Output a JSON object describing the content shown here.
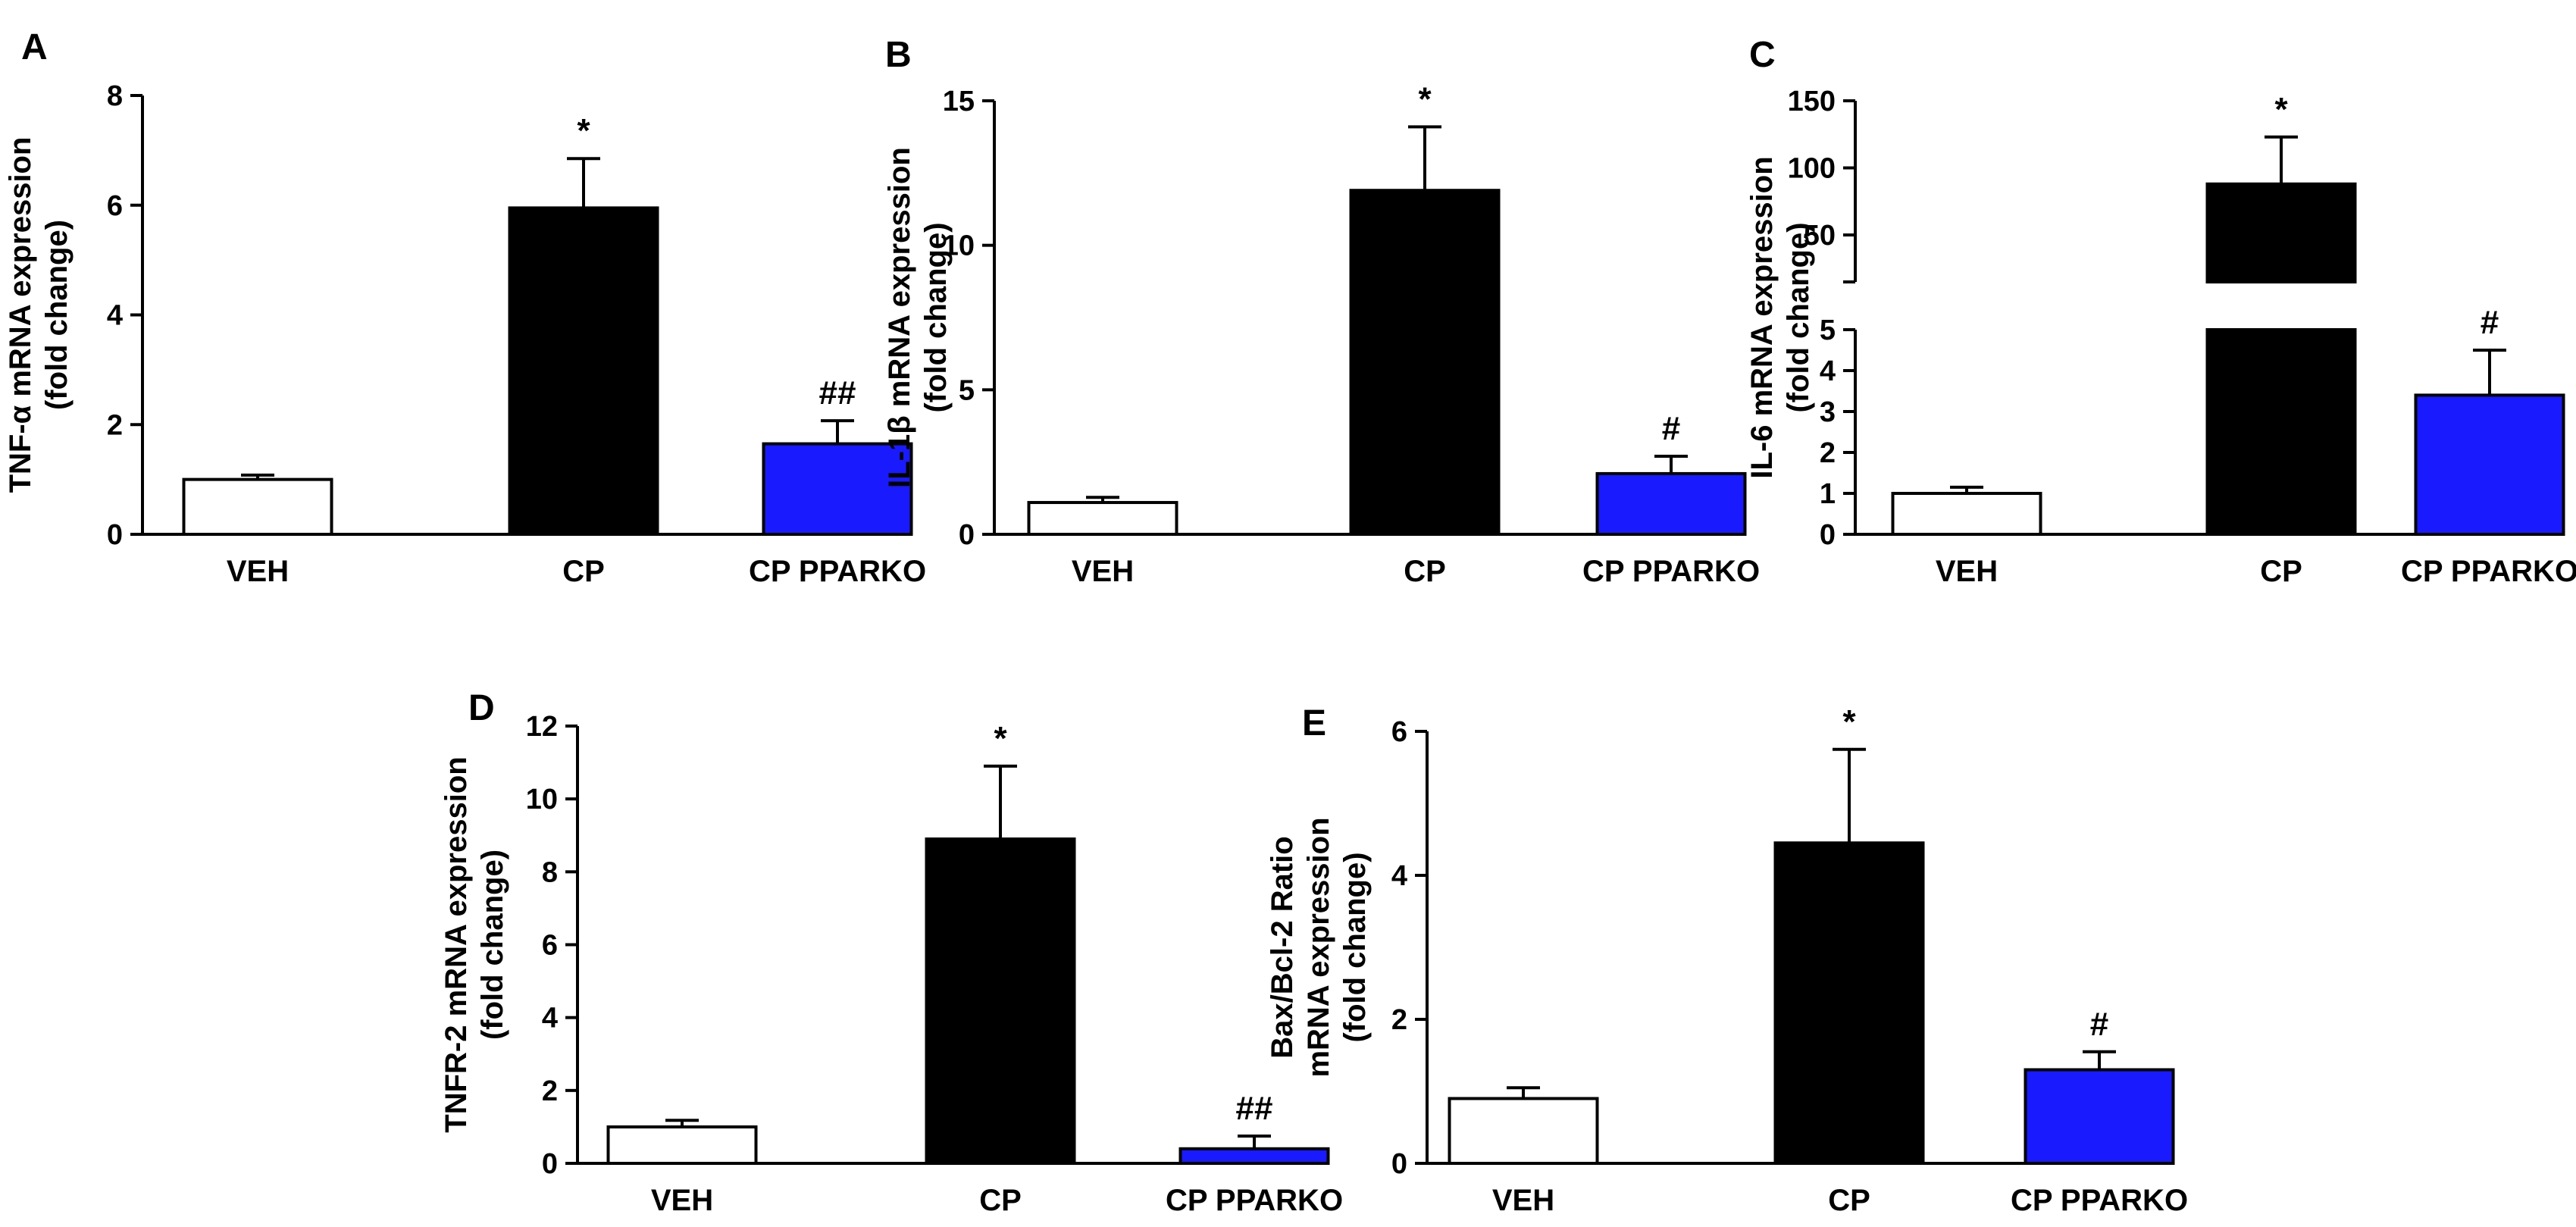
{
  "colors": {
    "VEH": "#ffffff",
    "CP": "#000000",
    "CP PPARKO": "#1a1aff"
  },
  "chart_data": [
    {
      "panel": "A",
      "type": "bar",
      "categories": [
        "VEH",
        "CP",
        "CP PPARKO"
      ],
      "values": [
        1.0,
        5.95,
        1.65
      ],
      "errors": [
        0.08,
        0.9,
        0.42
      ],
      "annotations": [
        "",
        "*",
        "##"
      ],
      "ylabel": [
        "TNF-α mRNA expression",
        "(fold change)"
      ],
      "ylim": [
        0,
        8
      ],
      "yticks": [
        0,
        2,
        4,
        6,
        8
      ]
    },
    {
      "panel": "B",
      "type": "bar",
      "categories": [
        "VEH",
        "CP",
        "CP PPARKO"
      ],
      "values": [
        1.1,
        11.9,
        2.1
      ],
      "errors": [
        0.18,
        2.2,
        0.6
      ],
      "annotations": [
        "",
        "*",
        "#"
      ],
      "ylabel": [
        "IL-1β mRNA expression",
        "(fold change)"
      ],
      "ylim": [
        0,
        15
      ],
      "yticks": [
        0,
        5,
        10,
        15
      ]
    },
    {
      "panel": "C",
      "type": "bar",
      "broken_axis": true,
      "categories": [
        "VEH",
        "CP",
        "CP PPARKO"
      ],
      "values": [
        1.0,
        88,
        3.4
      ],
      "errors": [
        0.15,
        35,
        1.1
      ],
      "annotations": [
        "",
        "*",
        "#"
      ],
      "ylabel": [
        "IL-6 mRNA expression",
        "(fold change)"
      ],
      "lower_ylim": [
        0,
        5
      ],
      "lower_yticks": [
        0,
        1,
        2,
        3,
        4,
        5
      ],
      "upper_ylim": [
        15,
        150
      ],
      "upper_yticks": [
        50,
        100,
        150
      ]
    },
    {
      "panel": "D",
      "type": "bar",
      "categories": [
        "VEH",
        "CP",
        "CP PPARKO"
      ],
      "values": [
        1.0,
        8.9,
        0.4
      ],
      "errors": [
        0.18,
        2.0,
        0.35
      ],
      "annotations": [
        "",
        "*",
        "##"
      ],
      "ylabel": [
        "TNFR-2 mRNA expression",
        "(fold change)"
      ],
      "ylim": [
        0,
        12
      ],
      "yticks": [
        0,
        2,
        4,
        6,
        8,
        10,
        12
      ]
    },
    {
      "panel": "E",
      "type": "bar",
      "categories": [
        "VEH",
        "CP",
        "CP PPARKO"
      ],
      "values": [
        0.9,
        4.45,
        1.3
      ],
      "errors": [
        0.15,
        1.3,
        0.25
      ],
      "annotations": [
        "",
        "*",
        "#"
      ],
      "ylabel": [
        "Bax/Bcl-2 Ratio",
        "mRNA expression",
        "(fold change)"
      ],
      "ylim": [
        0,
        6
      ],
      "yticks": [
        0,
        2,
        4,
        6
      ]
    }
  ]
}
